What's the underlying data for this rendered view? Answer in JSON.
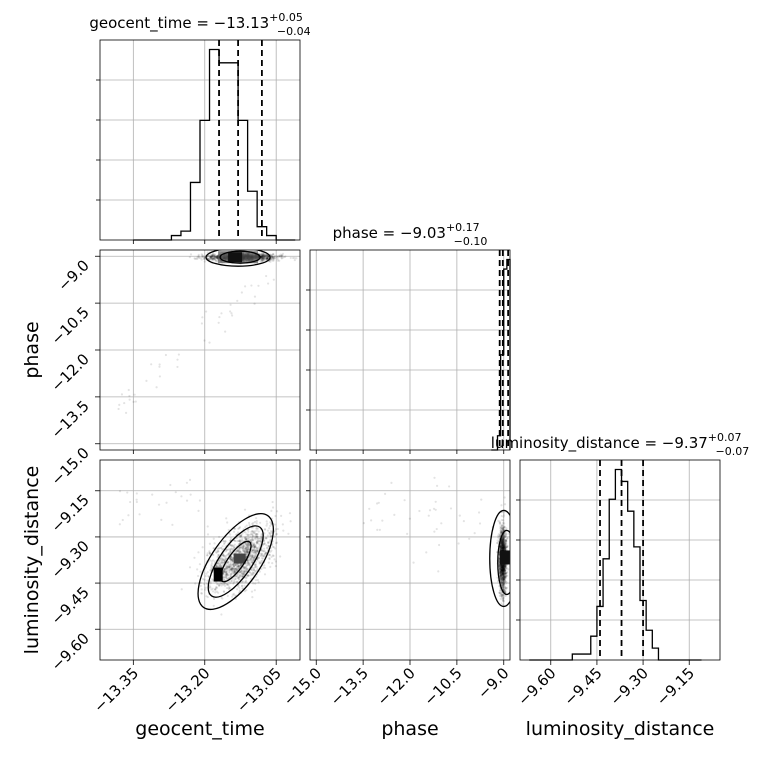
{
  "chart_data": {
    "type": "corner",
    "parameters": [
      "geocent_time",
      "phase",
      "luminosity_distance"
    ],
    "labels": {
      "geocent_time": "geocent_time",
      "phase": "phase",
      "luminosity_distance": "luminosity_distance"
    },
    "titles": [
      {
        "param": "geocent_time",
        "prefix": "geocent_time = ",
        "median": "−13.13",
        "plus": "+0.05",
        "minus": "−0.04"
      },
      {
        "param": "phase",
        "prefix": "phase = ",
        "median": "−9.03",
        "plus": "+0.17",
        "minus": "−0.10"
      },
      {
        "param": "luminosity_distance",
        "prefix": "luminosity_distance = ",
        "median": "−9.37",
        "plus": "+0.07",
        "minus": "−0.07"
      }
    ],
    "ranges": {
      "geocent_time": [
        -13.42,
        -13.0
      ],
      "phase": [
        -15.2,
        -8.8
      ],
      "luminosity_distance": [
        -9.7,
        -9.05
      ]
    },
    "ticks": {
      "geocent_time": [
        -13.35,
        -13.2,
        -13.05
      ],
      "phase": [
        -15.0,
        -13.5,
        -12.0,
        -10.5,
        -9.0
      ],
      "luminosity_distance": [
        -9.6,
        -9.45,
        -9.3,
        -9.15
      ]
    },
    "tick_labels": {
      "geocent_time": [
        "−13.35",
        "−13.20",
        "−13.05"
      ],
      "phase": [
        "−15.0",
        "−13.5",
        "−12.0",
        "−10.5",
        "−9.0"
      ],
      "luminosity_distance": [
        "−9.60",
        "−9.45",
        "−9.30",
        "−9.15"
      ]
    },
    "histograms": {
      "geocent_time": {
        "bin_edges": [
          -13.35,
          -13.33,
          -13.31,
          -13.29,
          -13.27,
          -13.25,
          -13.23,
          -13.21,
          -13.19,
          -13.17,
          -13.15,
          -13.13,
          -13.11,
          -13.09,
          -13.07,
          -13.05,
          -13.03,
          -13.01
        ],
        "counts": [
          0,
          0,
          0,
          0,
          1,
          2,
          13,
          27,
          43,
          40,
          40,
          27,
          11,
          3,
          1,
          0,
          0
        ]
      },
      "phase": {
        "bin_edges": [
          -9.4,
          -9.3,
          -9.2,
          -9.1,
          -9.0,
          -8.9,
          -8.8
        ],
        "counts": [
          0,
          0,
          3,
          20,
          38,
          40
        ]
      },
      "luminosity_distance": {
        "bin_edges": [
          -9.67,
          -9.65,
          -9.63,
          -9.61,
          -9.59,
          -9.57,
          -9.55,
          -9.53,
          -9.51,
          -9.49,
          -9.47,
          -9.45,
          -9.43,
          -9.41,
          -9.39,
          -9.37,
          -9.35,
          -9.33,
          -9.31,
          -9.29,
          -9.27,
          -9.25,
          -9.23,
          -9.21,
          -9.19,
          -9.17,
          -9.15,
          -9.13,
          -9.11
        ],
        "counts": [
          0,
          0,
          0,
          0,
          0,
          0,
          0,
          1,
          1,
          1,
          4,
          9,
          17,
          27,
          32,
          30,
          25,
          19,
          10,
          5,
          2,
          0,
          0,
          0,
          0,
          0,
          0,
          0
        ]
      }
    },
    "quantiles": {
      "geocent_time": [
        -13.17,
        -13.13,
        -13.08
      ],
      "phase": [
        -9.13,
        -9.03,
        -8.86
      ],
      "luminosity_distance": [
        -9.44,
        -9.37,
        -9.3
      ]
    },
    "grid": true
  }
}
